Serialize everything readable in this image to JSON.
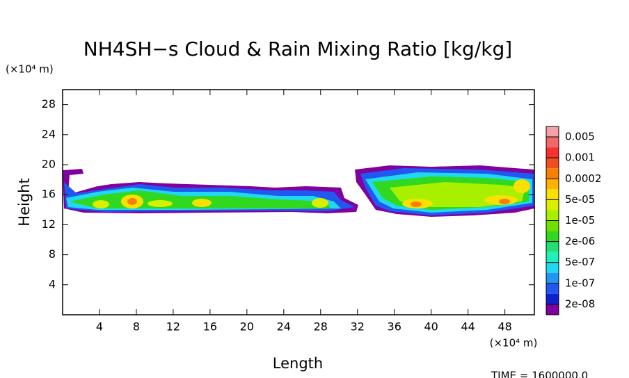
{
  "chart_data": {
    "type": "contour",
    "title": "NH4SH−s Cloud & Rain Mixing Ratio [kg/kg]",
    "x_label": "Length",
    "y_label": "Height",
    "x_unit": "(×10⁴ m)",
    "y_unit": "(×10⁴ m)",
    "time_label": "TIME = 1600000.0",
    "xlim": [
      0,
      51.2
    ],
    "ylim": [
      0,
      30
    ],
    "xticks": [
      4,
      8,
      12,
      16,
      20,
      24,
      28,
      32,
      36,
      40,
      44,
      48
    ],
    "yticks": [
      4,
      8,
      12,
      16,
      20,
      24,
      28
    ],
    "colorbar": {
      "labels": [
        "0.005",
        "0.001",
        "0.0002",
        "5e-05",
        "1e-05",
        "2e-06",
        "5e-07",
        "1e-07",
        "2e-08"
      ],
      "colors": [
        "#f4a0a8",
        "#f06868",
        "#f83030",
        "#f05020",
        "#f88000",
        "#ffb000",
        "#f8e000",
        "#d8f000",
        "#a8f000",
        "#70e000",
        "#30d820",
        "#20e070",
        "#20f0b8",
        "#20d8f0",
        "#2098f0",
        "#2058f0",
        "#1020d0",
        "#8000a0"
      ]
    }
  }
}
